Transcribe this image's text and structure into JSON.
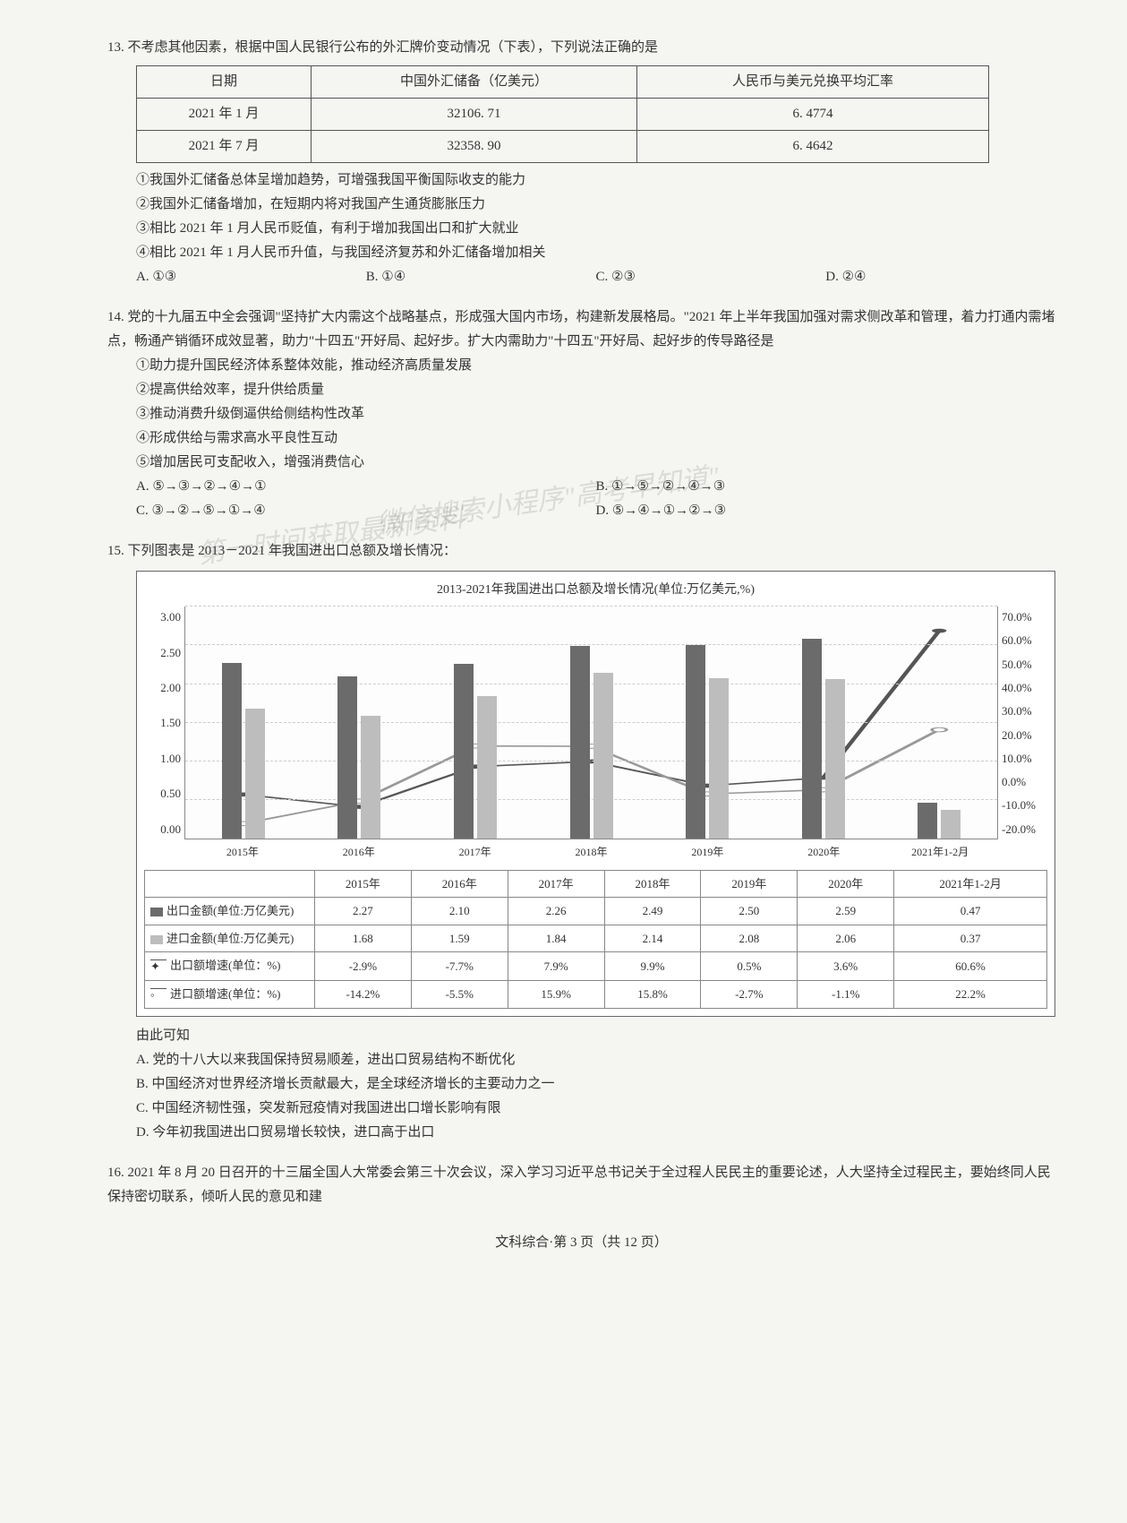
{
  "q13": {
    "num": "13.",
    "stem": "不考虑其他因素，根据中国人民银行公布的外汇牌价变动情况（下表），下列说法正确的是",
    "table": {
      "headers": [
        "日期",
        "中国外汇储备（亿美元）",
        "人民币与美元兑换平均汇率"
      ],
      "rows": [
        [
          "2021 年 1 月",
          "32106. 71",
          "6. 4774"
        ],
        [
          "2021 年 7 月",
          "32358. 90",
          "6. 4642"
        ]
      ]
    },
    "stmts": [
      "①我国外汇储备总体呈增加趋势，可增强我国平衡国际收支的能力",
      "②我国外汇储备增加，在短期内将对我国产生通货膨胀压力",
      "③相比 2021 年 1 月人民币贬值，有利于增加我国出口和扩大就业",
      "④相比 2021 年 1 月人民币升值，与我国经济复苏和外汇储备增加相关"
    ],
    "opts": [
      "A. ①③",
      "B. ①④",
      "C. ②③",
      "D. ②④"
    ]
  },
  "q14": {
    "num": "14.",
    "stem": "党的十九届五中全会强调\"坚持扩大内需这个战略基点，形成强大国内市场，构建新发展格局。\"2021 年上半年我国加强对需求侧改革和管理，着力打通内需堵点，畅通产销循环成效显著，助力\"十四五\"开好局、起好步。扩大内需助力\"十四五\"开好局、起好步的传导路径是",
    "stmts": [
      "①助力提升国民经济体系整体效能，推动经济高质量发展",
      "②提高供给效率，提升供给质量",
      "③推动消费升级倒逼供给侧结构性改革",
      "④形成供给与需求高水平良性互动",
      "⑤增加居民可支配收入，增强消费信心"
    ],
    "opts": [
      "A. ⑤→③→②→④→①",
      "B. ①→⑤→②→④→③",
      "C. ③→②→⑤→①→④",
      "D. ⑤→④→①→②→③"
    ]
  },
  "q15": {
    "num": "15.",
    "stem": "下列图表是 2013－2021 年我国进出口总额及增长情况：",
    "conclusion": "由此可知",
    "opts": [
      "A. 党的十八大以来我国保持贸易顺差，进出口贸易结构不断优化",
      "B. 中国经济对世界经济增长贡献最大，是全球经济增长的主要动力之一",
      "C. 中国经济韧性强，突发新冠疫情对我国进出口增长影响有限",
      "D. 今年初我国进出口贸易增长较快，进口高于出口"
    ],
    "chart": {
      "title": "2013-2021年我国进出口总额及增长情况(单位:万亿美元,%)",
      "type": "bar+line",
      "categories": [
        "2015年",
        "2016年",
        "2017年",
        "2018年",
        "2019年",
        "2020年",
        "2021年1-2月"
      ],
      "y_left": {
        "min": 0,
        "max": 3.0,
        "step": 0.5,
        "ticks": [
          "3.00",
          "2.50",
          "2.00",
          "1.50",
          "1.00",
          "0.50",
          "0.00"
        ]
      },
      "y_right": {
        "min": -20,
        "max": 70,
        "step": 10,
        "ticks": [
          "70.0%",
          "60.0%",
          "50.0%",
          "40.0%",
          "30.0%",
          "20.0%",
          "10.0%",
          "0.0%",
          "-10.0%",
          "-20.0%"
        ]
      },
      "series": {
        "export_amt": {
          "label": "出口金额(单位:万亿美元)",
          "color": "#6b6b6b",
          "values": [
            2.27,
            2.1,
            2.26,
            2.49,
            2.5,
            2.59,
            0.47
          ]
        },
        "import_amt": {
          "label": "进口金额(单位:万亿美元)",
          "color": "#bdbdbd",
          "values": [
            1.68,
            1.59,
            1.84,
            2.14,
            2.08,
            2.06,
            0.37
          ]
        },
        "export_growth": {
          "label": "出口额增速(单位：%)",
          "color": "#555",
          "values": [
            -2.9,
            -7.7,
            7.9,
            9.9,
            0.5,
            3.6,
            60.6
          ]
        },
        "import_growth": {
          "label": "进口额增速(单位：%)",
          "color": "#999",
          "values": [
            -14.2,
            -5.5,
            15.9,
            15.8,
            -2.7,
            -1.1,
            22.2
          ]
        }
      },
      "data_table": {
        "rows": [
          [
            "出口金额(单位:万亿美元)",
            "2.27",
            "2.10",
            "2.26",
            "2.49",
            "2.50",
            "2.59",
            "0.47"
          ],
          [
            "进口金额(单位:万亿美元)",
            "1.68",
            "1.59",
            "1.84",
            "2.14",
            "2.08",
            "2.06",
            "0.37"
          ],
          [
            "出口额增速(单位：%)",
            "-2.9%",
            "-7.7%",
            "7.9%",
            "9.9%",
            "0.5%",
            "3.6%",
            "60.6%"
          ],
          [
            "进口额增速(单位：%)",
            "-14.2%",
            "-5.5%",
            "15.9%",
            "15.8%",
            "-2.7%",
            "-1.1%",
            "22.2%"
          ]
        ]
      },
      "background_color": "#ffffff",
      "grid_color": "#cccccc"
    }
  },
  "q16": {
    "num": "16.",
    "stem": "2021 年 8 月 20 日召开的十三届全国人大常委会第三十次会议，深入学习习近平总书记关于全过程人民民主的重要论述，人大坚持全过程民主，要始终同人民保持密切联系，倾听人民的意见和建"
  },
  "footer": "文科综合·第 3 页（共 12 页）",
  "watermark1": "微信搜索小程序\"高考早知道\"",
  "watermark2": "第一时间获取最新资料"
}
